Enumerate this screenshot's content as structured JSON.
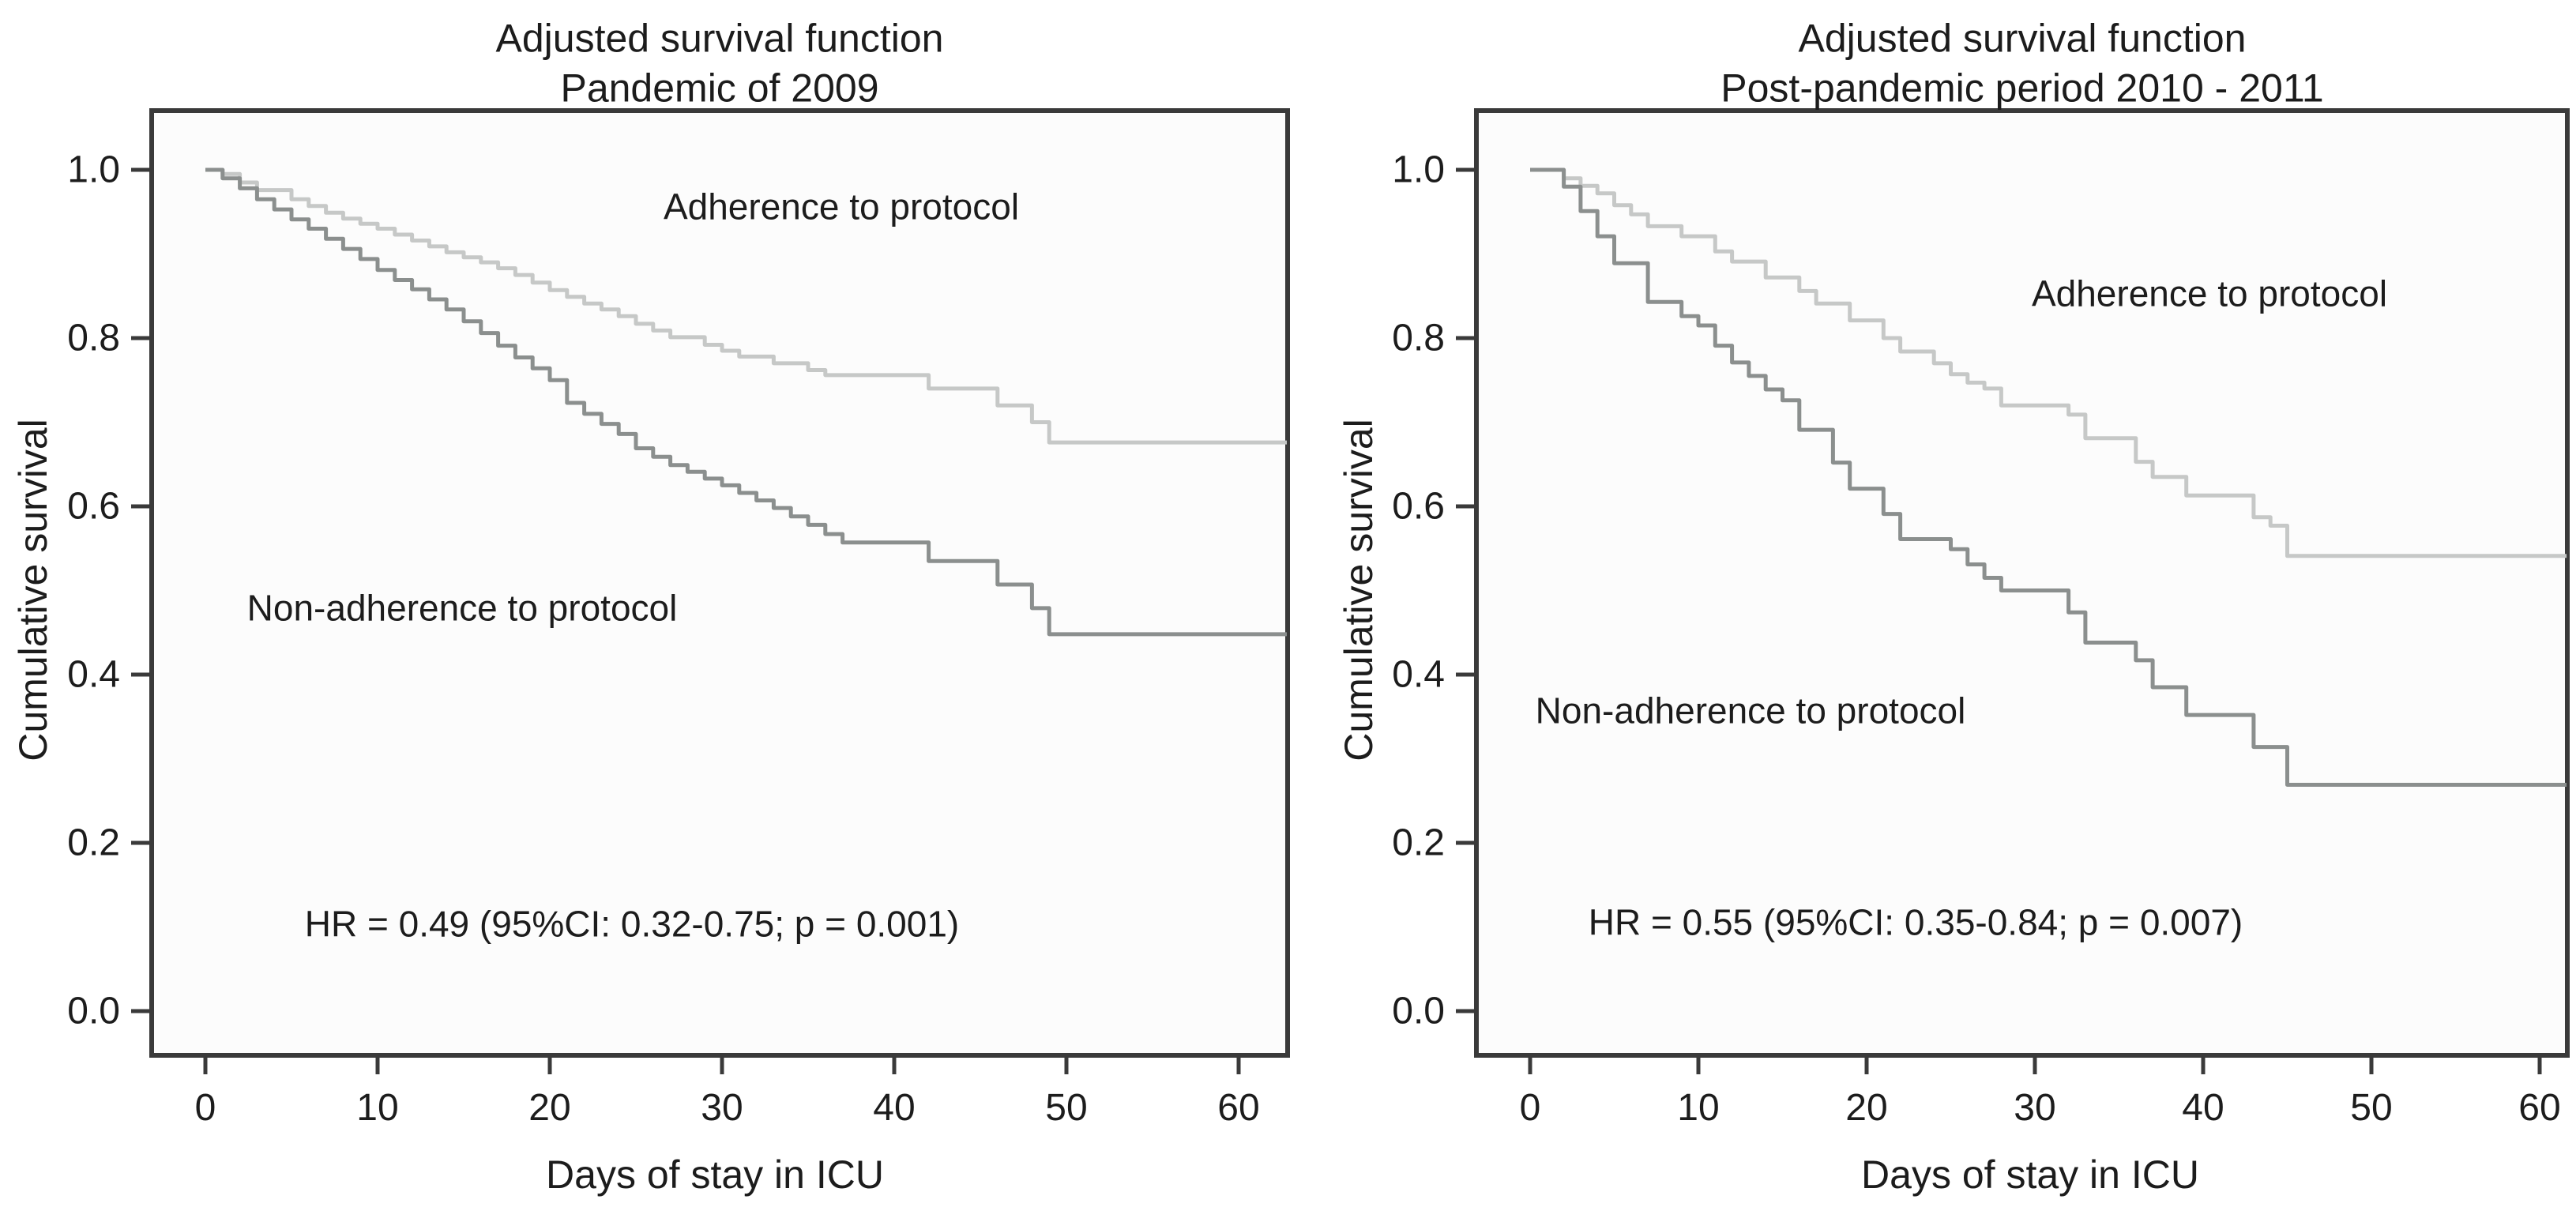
{
  "panels": [
    {
      "title_line1": "Adjusted survival function",
      "title_line2": "Pandemic of 2009",
      "ylabel": "Cumulative survival",
      "xlabel": "Days of stay in ICU",
      "adherence_label": "Adherence to protocol",
      "non_adherence_label": "Non-adherence to protocol",
      "annotation": "HR = 0.49 (95%CI: 0.32-0.75; p = 0.001)"
    },
    {
      "title_line1": "Adjusted survival function",
      "title_line2": "Post-pandemic period 2010 - 2011",
      "ylabel": "Cumulative survival",
      "xlabel": "Days of stay in ICU",
      "adherence_label": "Adherence to protocol",
      "non_adherence_label": "Non-adherence to protocol",
      "annotation": "HR = 0.55 (95%CI: 0.35-0.84; p = 0.007)"
    }
  ],
  "colors": {
    "adherence": "#c6c8c7",
    "non_adherence": "#8b8f8e",
    "axis": "#3a3a3a",
    "plot_bg": "#fcfcfc",
    "text": "#1c1c1c"
  },
  "chart_data": [
    {
      "type": "line",
      "subtype": "kaplan-meier-step",
      "title": "Adjusted survival function - Pandemic of 2009",
      "xlabel": "Days of stay in ICU",
      "ylabel": "Cumulative survival",
      "annotation": "HR = 0.49 (95%CI: 0.32-0.75; p = 0.001)",
      "grid": false,
      "legend_position": "inline-labels",
      "xlim": [
        0,
        62.8
      ],
      "ylim": [
        0.0,
        1.05
      ],
      "xticks": [
        0,
        10,
        20,
        30,
        40,
        50,
        60
      ],
      "ytick_labels": [
        "1.0",
        "0.8",
        "0.6",
        "0.4",
        "0.2",
        "0.0"
      ],
      "ytick_values": [
        1.0,
        0.8,
        0.6,
        0.4,
        0.2,
        0.0
      ],
      "series": [
        {
          "name": "Adherence to protocol",
          "color": "#c6c8c7",
          "points": [
            [
              0,
              1.0
            ],
            [
              1,
              0.995
            ],
            [
              2,
              0.985
            ],
            [
              3,
              0.976
            ],
            [
              5,
              0.965
            ],
            [
              6,
              0.957
            ],
            [
              7,
              0.949
            ],
            [
              8,
              0.942
            ],
            [
              9,
              0.936
            ],
            [
              10,
              0.93
            ],
            [
              11,
              0.923
            ],
            [
              12,
              0.916
            ],
            [
              13,
              0.909
            ],
            [
              14,
              0.902
            ],
            [
              15,
              0.896
            ],
            [
              16,
              0.89
            ],
            [
              17,
              0.883
            ],
            [
              18,
              0.875
            ],
            [
              19,
              0.866
            ],
            [
              20,
              0.857
            ],
            [
              21,
              0.849
            ],
            [
              22,
              0.841
            ],
            [
              23,
              0.834
            ],
            [
              24,
              0.826
            ],
            [
              25,
              0.817
            ],
            [
              26,
              0.809
            ],
            [
              27,
              0.801
            ],
            [
              29,
              0.792
            ],
            [
              30,
              0.785
            ],
            [
              31,
              0.778
            ],
            [
              33,
              0.77
            ],
            [
              35,
              0.762
            ],
            [
              36,
              0.756
            ],
            [
              42,
              0.74
            ],
            [
              46,
              0.72
            ],
            [
              48,
              0.7
            ],
            [
              49,
              0.676
            ],
            [
              62.8,
              0.676
            ]
          ]
        },
        {
          "name": "Non-adherence to protocol",
          "color": "#8b8f8e",
          "points": [
            [
              0,
              1.0
            ],
            [
              1,
              0.99
            ],
            [
              2,
              0.978
            ],
            [
              3,
              0.965
            ],
            [
              4,
              0.953
            ],
            [
              5,
              0.941
            ],
            [
              6,
              0.93
            ],
            [
              7,
              0.918
            ],
            [
              8,
              0.906
            ],
            [
              9,
              0.894
            ],
            [
              10,
              0.881
            ],
            [
              11,
              0.869
            ],
            [
              12,
              0.858
            ],
            [
              13,
              0.846
            ],
            [
              14,
              0.834
            ],
            [
              15,
              0.82
            ],
            [
              16,
              0.806
            ],
            [
              17,
              0.791
            ],
            [
              18,
              0.777
            ],
            [
              19,
              0.764
            ],
            [
              20,
              0.75
            ],
            [
              21,
              0.723
            ],
            [
              22,
              0.71
            ],
            [
              23,
              0.698
            ],
            [
              24,
              0.686
            ],
            [
              25,
              0.669
            ],
            [
              26,
              0.659
            ],
            [
              27,
              0.649
            ],
            [
              28,
              0.641
            ],
            [
              29,
              0.633
            ],
            [
              30,
              0.625
            ],
            [
              31,
              0.616
            ],
            [
              32,
              0.607
            ],
            [
              33,
              0.598
            ],
            [
              34,
              0.588
            ],
            [
              35,
              0.578
            ],
            [
              36,
              0.567
            ],
            [
              37,
              0.557
            ],
            [
              42,
              0.535
            ],
            [
              46,
              0.507
            ],
            [
              48,
              0.479
            ],
            [
              49,
              0.448
            ],
            [
              62.8,
              0.448
            ]
          ]
        }
      ]
    },
    {
      "type": "line",
      "subtype": "kaplan-meier-step",
      "title": "Adjusted survival function - Post-pandemic period 2010 - 2011",
      "xlabel": "Days of stay in ICU",
      "ylabel": "Cumulative survival",
      "annotation": "HR = 0.55 (95%CI: 0.35-0.84; p = 0.007)",
      "grid": false,
      "legend_position": "inline-labels",
      "xlim": [
        0,
        61.6
      ],
      "ylim": [
        0.0,
        1.05
      ],
      "xticks": [
        0,
        10,
        20,
        30,
        40,
        50,
        60
      ],
      "ytick_labels": [
        "1.0",
        "0.8",
        "0.6",
        "0.4",
        "0.2",
        "0.0"
      ],
      "ytick_values": [
        1.0,
        0.8,
        0.6,
        0.4,
        0.2,
        0.0
      ],
      "series": [
        {
          "name": "Adherence to protocol",
          "color": "#c6c8c7",
          "points": [
            [
              0,
              1.0
            ],
            [
              2,
              0.99
            ],
            [
              3,
              0.981
            ],
            [
              4,
              0.972
            ],
            [
              5,
              0.958
            ],
            [
              6,
              0.947
            ],
            [
              7,
              0.933
            ],
            [
              9,
              0.921
            ],
            [
              11,
              0.903
            ],
            [
              12,
              0.891
            ],
            [
              14,
              0.872
            ],
            [
              16,
              0.856
            ],
            [
              17,
              0.841
            ],
            [
              19,
              0.821
            ],
            [
              21,
              0.8
            ],
            [
              22,
              0.784
            ],
            [
              24,
              0.77
            ],
            [
              25,
              0.757
            ],
            [
              26,
              0.747
            ],
            [
              27,
              0.74
            ],
            [
              28,
              0.72
            ],
            [
              32,
              0.709
            ],
            [
              33,
              0.681
            ],
            [
              36,
              0.653
            ],
            [
              37,
              0.635
            ],
            [
              39,
              0.613
            ],
            [
              43,
              0.587
            ],
            [
              44,
              0.577
            ],
            [
              45,
              0.541
            ],
            [
              61.6,
              0.541
            ]
          ]
        },
        {
          "name": "Non-adherence to protocol",
          "color": "#8b8f8e",
          "points": [
            [
              0,
              1.0
            ],
            [
              2,
              0.98
            ],
            [
              3,
              0.951
            ],
            [
              4,
              0.921
            ],
            [
              5,
              0.889
            ],
            [
              7,
              0.843
            ],
            [
              9,
              0.826
            ],
            [
              10,
              0.815
            ],
            [
              11,
              0.791
            ],
            [
              12,
              0.771
            ],
            [
              13,
              0.755
            ],
            [
              14,
              0.739
            ],
            [
              15,
              0.726
            ],
            [
              16,
              0.691
            ],
            [
              18,
              0.652
            ],
            [
              19,
              0.621
            ],
            [
              21,
              0.591
            ],
            [
              22,
              0.561
            ],
            [
              25,
              0.549
            ],
            [
              26,
              0.531
            ],
            [
              27,
              0.515
            ],
            [
              28,
              0.5
            ],
            [
              32,
              0.474
            ],
            [
              33,
              0.438
            ],
            [
              36,
              0.417
            ],
            [
              37,
              0.385
            ],
            [
              39,
              0.352
            ],
            [
              43,
              0.314
            ],
            [
              45,
              0.269
            ],
            [
              61.6,
              0.269
            ]
          ]
        }
      ]
    }
  ]
}
